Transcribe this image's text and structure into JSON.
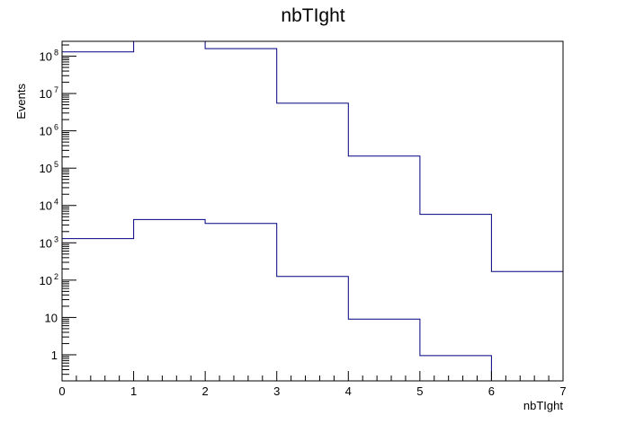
{
  "chart_data": {
    "type": "bar",
    "title": "nbTIght",
    "xlabel": "nbTIght",
    "ylabel": "Events",
    "xlim": [
      0,
      7
    ],
    "ylim": [
      0.2,
      250000000
    ],
    "y_scale": "log",
    "grid": false,
    "x_ticks": [
      "0",
      "1",
      "2",
      "3",
      "4",
      "5",
      "6",
      "7"
    ],
    "y_ticks": [
      {
        "value": 1,
        "label": "1"
      },
      {
        "value": 10,
        "label": "10"
      },
      {
        "value": 100,
        "label": "10",
        "exp": "2"
      },
      {
        "value": 1000,
        "label": "10",
        "exp": "3"
      },
      {
        "value": 10000,
        "label": "10",
        "exp": "4"
      },
      {
        "value": 100000,
        "label": "10",
        "exp": "5"
      },
      {
        "value": 1000000,
        "label": "10",
        "exp": "6"
      },
      {
        "value": 10000000,
        "label": "10",
        "exp": "7"
      },
      {
        "value": 100000000,
        "label": "10",
        "exp": "8"
      }
    ],
    "bin_edges": [
      0,
      1,
      2,
      3,
      4,
      5,
      6,
      7
    ],
    "series": [
      {
        "values": [
          130000000,
          250000000,
          160000000,
          5500000,
          210000,
          5800,
          170
        ],
        "color": "#000080"
      },
      {
        "values": [
          1300,
          4200,
          3300,
          125,
          9,
          0.95,
          0
        ],
        "color": "#000080"
      }
    ],
    "frame_color": "#000000"
  }
}
